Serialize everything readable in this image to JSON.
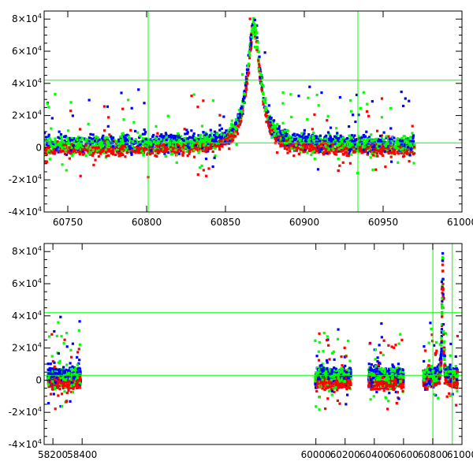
{
  "chart_data": [
    {
      "type": "scatter",
      "title": "",
      "xlabel": "",
      "ylabel": "",
      "xlim": [
        60735,
        61000
      ],
      "ylim": [
        -40000,
        85000
      ],
      "x_ticks": [
        60750,
        60800,
        60850,
        60900,
        60950,
        61000
      ],
      "x_tick_labels": [
        "60750",
        "60800",
        "60850",
        "60900",
        "60950",
        "61000"
      ],
      "y_ticks": [
        -40000,
        -20000,
        0,
        20000,
        40000,
        60000,
        80000
      ],
      "y_tick_labels": [
        {
          "mantissa": "-4",
          "base": "×10",
          "exp": "4"
        },
        {
          "mantissa": "-2",
          "base": "×10",
          "exp": "4"
        },
        {
          "mantissa": "0",
          "base": "",
          "exp": ""
        },
        {
          "mantissa": "2",
          "base": "×10",
          "exp": "4"
        },
        {
          "mantissa": "4",
          "base": "×10",
          "exp": "4"
        },
        {
          "mantissa": "6",
          "base": "×10",
          "exp": "4"
        },
        {
          "mantissa": "8",
          "base": "×10",
          "exp": "4"
        }
      ],
      "reference_lines": {
        "horizontal": [
          3000,
          42000
        ],
        "vertical": [
          60801,
          60934
        ]
      },
      "series": [
        {
          "name": "red",
          "color": "#ff0000"
        },
        {
          "name": "blue",
          "color": "#0000ff"
        },
        {
          "name": "green",
          "color": "#00ff00"
        }
      ],
      "event": {
        "peak_x": 60868,
        "peak_y": 75000,
        "width": 5,
        "baseline": 1000
      }
    },
    {
      "type": "scatter",
      "title": "",
      "xlabel": "",
      "ylabel": "",
      "xlim": [
        58140,
        61000
      ],
      "ylim": [
        -40000,
        85000
      ],
      "x_ticks": [
        58200,
        58400,
        60000,
        60200,
        60400,
        60600,
        60800,
        61000
      ],
      "x_tick_labels": [
        "58200",
        "58400",
        "60000",
        "60200",
        "60400",
        "60600",
        "60800",
        "61000"
      ],
      "y_ticks": [
        -40000,
        -20000,
        0,
        20000,
        40000,
        60000,
        80000
      ],
      "y_tick_labels": [
        {
          "mantissa": "-4",
          "base": "×10",
          "exp": "4"
        },
        {
          "mantissa": "-2",
          "base": "×10",
          "exp": "4"
        },
        {
          "mantissa": "0",
          "base": "",
          "exp": ""
        },
        {
          "mantissa": "2",
          "base": "×10",
          "exp": "4"
        },
        {
          "mantissa": "4",
          "base": "×10",
          "exp": "4"
        },
        {
          "mantissa": "6",
          "base": "×10",
          "exp": "4"
        },
        {
          "mantissa": "8",
          "base": "×10",
          "exp": "4"
        }
      ],
      "reference_lines": {
        "horizontal": [
          3000,
          42000
        ],
        "vertical": [
          60801,
          60934
        ]
      },
      "season_ranges": [
        [
          58165,
          58390
        ],
        [
          59995,
          60240
        ],
        [
          60360,
          60600
        ],
        [
          60735,
          60970
        ]
      ],
      "series": [
        {
          "name": "red",
          "color": "#ff0000"
        },
        {
          "name": "blue",
          "color": "#0000ff"
        },
        {
          "name": "green",
          "color": "#00ff00"
        }
      ],
      "event": {
        "peak_x": 60868,
        "peak_y": 75000,
        "width": 5,
        "baseline": 1000
      }
    }
  ]
}
